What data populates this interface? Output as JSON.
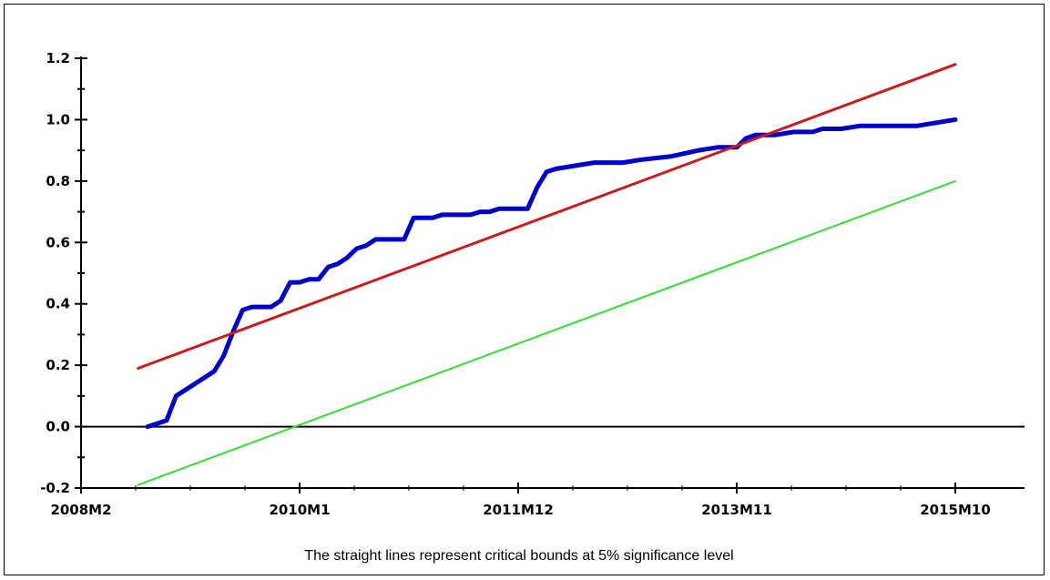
{
  "chart_data": {
    "type": "line",
    "caption": "The straight lines represent critical bounds at 5% significance level",
    "x_tick_labels": [
      "2008M2",
      "2010M1",
      "2011M12",
      "2013M11",
      "2015M10"
    ],
    "x_tick_index": [
      0,
      23,
      46,
      69,
      92
    ],
    "xlim": [
      0,
      92
    ],
    "ylim": [
      -0.2,
      1.2
    ],
    "y_ticks": [
      {
        "value": 1.2,
        "label": "1.2"
      },
      {
        "value": 1.0,
        "label": "1.0"
      },
      {
        "value": 0.8,
        "label": "0.8"
      },
      {
        "value": 0.6,
        "label": "0.6"
      },
      {
        "value": 0.4,
        "label": "0.4"
      },
      {
        "value": 0.2,
        "label": "0.2"
      },
      {
        "value": 0.0,
        "label": "0.0"
      },
      {
        "value": -0.2,
        "label": "-0.2"
      }
    ],
    "y_minor_ticks": [
      1.1,
      0.9,
      0.7,
      0.5,
      0.3,
      0.1,
      -0.1
    ],
    "grid": false,
    "zero_line": true,
    "series": [
      {
        "color": "#0000cc",
        "width": 5,
        "points": [
          [
            7,
            0.0
          ],
          [
            8,
            0.01
          ],
          [
            9,
            0.02
          ],
          [
            10,
            0.1
          ],
          [
            11,
            0.12
          ],
          [
            12,
            0.14
          ],
          [
            13,
            0.16
          ],
          [
            14,
            0.18
          ],
          [
            15,
            0.23
          ],
          [
            16,
            0.31
          ],
          [
            17,
            0.38
          ],
          [
            18,
            0.39
          ],
          [
            19,
            0.39
          ],
          [
            20,
            0.39
          ],
          [
            21,
            0.41
          ],
          [
            22,
            0.47
          ],
          [
            23,
            0.47
          ],
          [
            24,
            0.48
          ],
          [
            25,
            0.48
          ],
          [
            26,
            0.52
          ],
          [
            27,
            0.53
          ],
          [
            28,
            0.55
          ],
          [
            29,
            0.58
          ],
          [
            30,
            0.59
          ],
          [
            31,
            0.61
          ],
          [
            32,
            0.61
          ],
          [
            33,
            0.61
          ],
          [
            34,
            0.61
          ],
          [
            35,
            0.68
          ],
          [
            36,
            0.68
          ],
          [
            37,
            0.68
          ],
          [
            38,
            0.69
          ],
          [
            39,
            0.69
          ],
          [
            40,
            0.69
          ],
          [
            41,
            0.69
          ],
          [
            42,
            0.7
          ],
          [
            43,
            0.7
          ],
          [
            44,
            0.71
          ],
          [
            45,
            0.71
          ],
          [
            47,
            0.71
          ],
          [
            48,
            0.78
          ],
          [
            49,
            0.83
          ],
          [
            50,
            0.84
          ],
          [
            52,
            0.85
          ],
          [
            54,
            0.86
          ],
          [
            57,
            0.86
          ],
          [
            59,
            0.87
          ],
          [
            62,
            0.88
          ],
          [
            65,
            0.9
          ],
          [
            67,
            0.91
          ],
          [
            69,
            0.91
          ],
          [
            70,
            0.94
          ],
          [
            71,
            0.95
          ],
          [
            73,
            0.95
          ],
          [
            75,
            0.96
          ],
          [
            77,
            0.96
          ],
          [
            78,
            0.97
          ],
          [
            80,
            0.97
          ],
          [
            82,
            0.98
          ],
          [
            84,
            0.98
          ],
          [
            86,
            0.98
          ],
          [
            88,
            0.98
          ],
          [
            90,
            0.99
          ],
          [
            92,
            1.0
          ]
        ]
      },
      {
        "color": "#cc1a1a",
        "width": 3,
        "points": [
          [
            6,
            0.19
          ],
          [
            92,
            1.18
          ]
        ]
      },
      {
        "color": "#33dd33",
        "width": 2,
        "points": [
          [
            6,
            -0.19
          ],
          [
            92,
            0.8
          ]
        ]
      }
    ]
  }
}
